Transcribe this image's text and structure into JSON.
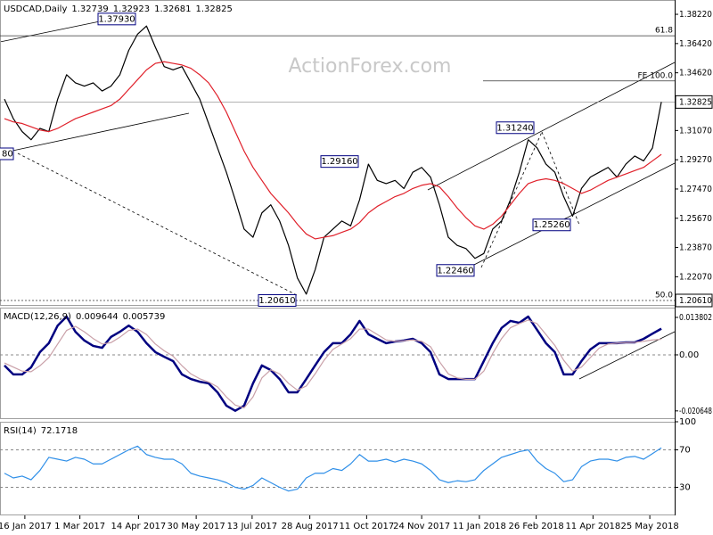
{
  "chart_data": [
    {
      "type": "line",
      "title": "USDCAD,Daily",
      "ohlc": [
        1.32739,
        1.32923,
        1.32681,
        1.32825
      ],
      "watermark": "ActionForex.com",
      "series": [
        {
          "color": "#000000",
          "values": [
            1.33,
            1.318,
            1.31,
            1.305,
            1.312,
            1.31,
            1.33,
            1.345,
            1.34,
            1.338,
            1.34,
            1.335,
            1.338,
            1.345,
            1.36,
            1.37,
            1.375,
            1.362,
            1.35,
            1.348,
            1.35,
            1.34,
            1.33,
            1.315,
            1.3,
            1.285,
            1.268,
            1.25,
            1.245,
            1.26,
            1.265,
            1.255,
            1.24,
            1.22,
            1.21,
            1.225,
            1.245,
            1.25,
            1.255,
            1.252,
            1.268,
            1.29,
            1.28,
            1.278,
            1.28,
            1.275,
            1.285,
            1.288,
            1.282,
            1.265,
            1.245,
            1.24,
            1.238,
            1.232,
            1.235,
            1.25,
            1.255,
            1.268,
            1.285,
            1.305,
            1.3,
            1.29,
            1.285,
            1.27,
            1.258,
            1.275,
            1.282,
            1.285,
            1.288,
            1.282,
            1.29,
            1.295,
            1.292,
            1.3,
            1.32825
          ]
        },
        {
          "color": "#e0202a",
          "values": [
            1.318,
            1.316,
            1.315,
            1.313,
            1.311,
            1.31,
            1.312,
            1.315,
            1.318,
            1.32,
            1.322,
            1.324,
            1.326,
            1.33,
            1.336,
            1.342,
            1.348,
            1.352,
            1.353,
            1.352,
            1.351,
            1.349,
            1.345,
            1.34,
            1.332,
            1.322,
            1.31,
            1.298,
            1.288,
            1.28,
            1.272,
            1.266,
            1.26,
            1.253,
            1.247,
            1.244,
            1.245,
            1.246,
            1.248,
            1.25,
            1.254,
            1.26,
            1.264,
            1.267,
            1.27,
            1.272,
            1.275,
            1.277,
            1.278,
            1.276,
            1.27,
            1.263,
            1.257,
            1.252,
            1.25,
            1.253,
            1.258,
            1.265,
            1.272,
            1.278,
            1.28,
            1.281,
            1.28,
            1.278,
            1.275,
            1.272,
            1.274,
            1.277,
            1.28,
            1.282,
            1.284,
            1.286,
            1.288,
            1.292,
            1.296
          ]
        }
      ],
      "xlim": [
        -0.5,
        75.5
      ],
      "ylim": [
        1.2028,
        1.391
      ],
      "yticks": [
        {
          "value": 1.3822,
          "label": "1.38220"
        },
        {
          "value": 1.3642,
          "label": "1.36420"
        },
        {
          "value": 1.3462,
          "label": "1.34620"
        },
        {
          "value": 1.3107,
          "label": "1.31070"
        },
        {
          "value": 1.2927,
          "label": "1.29270"
        },
        {
          "value": 1.2747,
          "label": "1.27470"
        },
        {
          "value": 1.2567,
          "label": "1.25670"
        },
        {
          "value": 1.2387,
          "label": "1.23870"
        },
        {
          "value": 1.2207,
          "label": "1.22070"
        }
      ],
      "price_markers": [
        {
          "value": 1.32825,
          "label": "1.32825"
        },
        {
          "value": 1.2061,
          "label": "1.20610"
        }
      ],
      "annotations": [
        {
          "value": 1.3793,
          "label": "1.37930"
        },
        {
          "value": 1.3124,
          "label": "1.31240"
        },
        {
          "value": 1.2916,
          "label": "1.29160"
        },
        {
          "value": 1.2526,
          "label": "1.25260"
        },
        {
          "value": 1.2246,
          "label": "1.22460"
        },
        {
          "value": 1.2061,
          "label": "1.20610"
        }
      ],
      "clipped_label": "80",
      "fib_levels": [
        {
          "value": 1.369,
          "label": "61.8"
        },
        {
          "value": 1.3412,
          "label": "FE 100.0"
        },
        {
          "value": 1.2061,
          "label": "50.0"
        }
      ]
    },
    {
      "type": "line",
      "title": "MACD(12,26,9)",
      "series": [
        {
          "color": "#000080",
          "values": [
            -0.0039,
            -0.0072,
            -0.0072,
            -0.0046,
            0.001,
            0.0043,
            0.0108,
            0.0141,
            0.0085,
            0.0053,
            0.0033,
            0.0026,
            0.0066,
            0.0085,
            0.0108,
            0.0085,
            0.0043,
            0.001,
            -0.0007,
            -0.0023,
            -0.0072,
            -0.0089,
            -0.0099,
            -0.0105,
            -0.0138,
            -0.0187,
            -0.0206,
            -0.0187,
            -0.0105,
            -0.0039,
            -0.0056,
            -0.0089,
            -0.0138,
            -0.0138,
            -0.0089,
            -0.0039,
            0.001,
            0.0043,
            0.0043,
            0.0076,
            0.0125,
            0.0076,
            0.0059,
            0.0043,
            0.0049,
            0.0053,
            0.0059,
            0.0043,
            0.001,
            -0.0072,
            -0.0089,
            -0.0089,
            -0.0089,
            -0.0089,
            -0.0023,
            0.0043,
            0.0099,
            0.0125,
            0.0118,
            0.0141,
            0.0092,
            0.0043,
            0.001,
            -0.0072,
            -0.0072,
            -0.0023,
            0.002,
            0.0043,
            0.0043,
            0.0043,
            0.0046,
            0.0046,
            0.0059,
            0.0078,
            0.009644
          ]
        },
        {
          "color": "#c9a0a8",
          "values": [
            -0.003,
            -0.0045,
            -0.006,
            -0.0062,
            -0.004,
            -0.001,
            0.004,
            0.009,
            0.0105,
            0.0085,
            0.006,
            0.004,
            0.0045,
            0.0065,
            0.009,
            0.0095,
            0.0075,
            0.004,
            0.0015,
            -0.0005,
            -0.004,
            -0.007,
            -0.0088,
            -0.01,
            -0.0118,
            -0.0155,
            -0.0185,
            -0.0195,
            -0.0155,
            -0.0085,
            -0.0055,
            -0.007,
            -0.0105,
            -0.013,
            -0.0115,
            -0.007,
            -0.002,
            0.002,
            0.004,
            0.006,
            0.0095,
            0.0095,
            0.0075,
            0.0055,
            0.005,
            0.0052,
            0.0055,
            0.005,
            0.003,
            -0.0025,
            -0.007,
            -0.0085,
            -0.009,
            -0.009,
            -0.006,
            0.0005,
            0.006,
            0.01,
            0.0115,
            0.0128,
            0.0115,
            0.0075,
            0.0035,
            -0.002,
            -0.006,
            -0.0045,
            -0.001,
            0.0025,
            0.004,
            0.0043,
            0.0045,
            0.0046,
            0.005,
            0.0055,
            0.005739
          ]
        }
      ],
      "xlim": [
        -0.5,
        75.5
      ],
      "ylim": [
        -0.02366,
        0.0174
      ],
      "yticks": [
        0.013802,
        {
          "value": 0,
          "label": "0.00"
        },
        -0.020648
      ],
      "reference_lines": [
        0
      ]
    },
    {
      "type": "line",
      "title": "RSI(14)",
      "series": [
        {
          "color": "#2f8fe8",
          "values": [
            45,
            40,
            42,
            38,
            48,
            62,
            60,
            58,
            62,
            60,
            55,
            55,
            60,
            65,
            70,
            74,
            65,
            62,
            60,
            60,
            55,
            45,
            42,
            40,
            38,
            35,
            30,
            28,
            32,
            40,
            35,
            30,
            26,
            28,
            40,
            45,
            45,
            50,
            48,
            55,
            65,
            58,
            58,
            60,
            57,
            60,
            58,
            55,
            48,
            38,
            35,
            37,
            36,
            38,
            48,
            55,
            62,
            65,
            68,
            70,
            58,
            50,
            45,
            36,
            38,
            52,
            58,
            60,
            60,
            58,
            62,
            63,
            60,
            66,
            72.1718
          ]
        }
      ],
      "xlim": [
        -0.5,
        75.5
      ],
      "ylim": [
        0,
        100
      ],
      "yticks": [
        100,
        70,
        30
      ],
      "reference_lines": [
        70,
        30
      ],
      "xticks": [
        {
          "value": 2.3,
          "label": "16 Jan 2017"
        },
        {
          "value": 8.5,
          "label": "1 Mar 2017"
        },
        {
          "value": 15.1,
          "label": "14 Apr 2017"
        },
        {
          "value": 21.6,
          "label": "30 May 2017"
        },
        {
          "value": 27.9,
          "label": "13 Jul 2017"
        },
        {
          "value": 34.4,
          "label": "28 Aug 2017"
        },
        {
          "value": 40.8,
          "label": "11 Oct 2017"
        },
        {
          "value": 47.0,
          "label": "24 Nov 2017"
        },
        {
          "value": 53.5,
          "label": "11 Jan 2018"
        },
        {
          "value": 59.9,
          "label": "26 Feb 2018"
        },
        {
          "value": 66.3,
          "label": "11 Apr 2018"
        },
        {
          "value": 72.7,
          "label": "25 May 2018"
        }
      ]
    }
  ]
}
